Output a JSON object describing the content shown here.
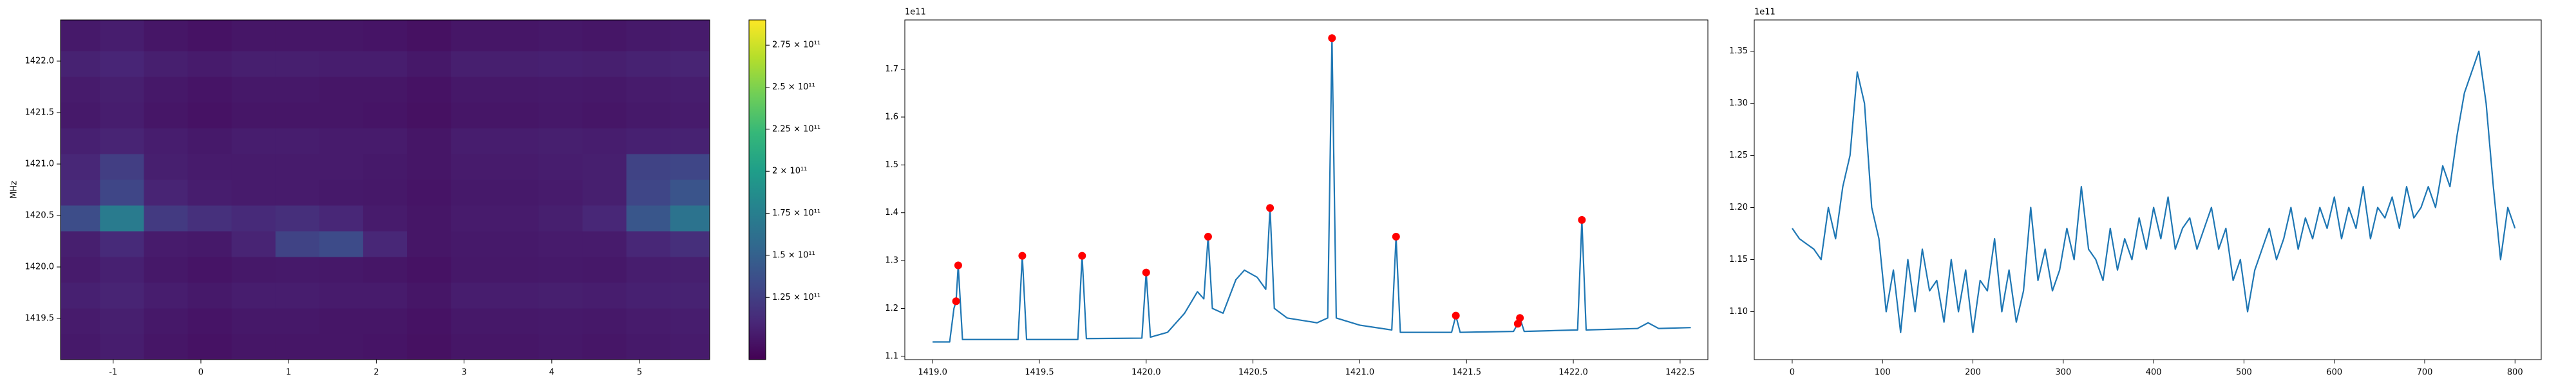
{
  "chart_data": [
    {
      "type": "heatmap",
      "x": [
        -1.4,
        -0.9,
        -0.4,
        0.1,
        0.6,
        1.1,
        1.6,
        2.1,
        2.6,
        3.1,
        3.6,
        4.1,
        4.6,
        5.1,
        5.6
      ],
      "y": [
        1419.225,
        1419.475,
        1419.725,
        1419.975,
        1420.225,
        1420.475,
        1420.725,
        1420.975,
        1421.225,
        1421.475,
        1421.725,
        1421.975,
        1422.225
      ],
      "z": [
        [
          102000000000.0,
          104000000000.0,
          100000000000.0,
          98000000000.0,
          100000000000.0,
          100000000000.0,
          100000000000.0,
          99000000000.0,
          97000000000.0,
          100000000000.0,
          100000000000.0,
          101000000000.0,
          100000000000.0,
          102000000000.0,
          103000000000.0
        ],
        [
          103000000000.0,
          105000000000.0,
          101000000000.0,
          99000000000.0,
          101000000000.0,
          101000000000.0,
          100000000000.0,
          100000000000.0,
          98000000000.0,
          101000000000.0,
          101000000000.0,
          102000000000.0,
          101000000000.0,
          103000000000.0,
          104000000000.0
        ],
        [
          106000000000.0,
          108000000000.0,
          104000000000.0,
          102000000000.0,
          104000000000.0,
          104000000000.0,
          103000000000.0,
          103000000000.0,
          100000000000.0,
          104000000000.0,
          104000000000.0,
          105000000000.0,
          104000000000.0,
          106000000000.0,
          107000000000.0
        ],
        [
          103000000000.0,
          106000000000.0,
          101000000000.0,
          99000000000.0,
          101000000000.0,
          102000000000.0,
          101000000000.0,
          100000000000.0,
          98000000000.0,
          101000000000.0,
          101000000000.0,
          102000000000.0,
          101000000000.0,
          104000000000.0,
          105000000000.0
        ],
        [
          105000000000.0,
          112000000000.0,
          103000000000.0,
          102000000000.0,
          108000000000.0,
          128000000000.0,
          134000000000.0,
          110000000000.0,
          100000000000.0,
          102000000000.0,
          102000000000.0,
          103000000000.0,
          103000000000.0,
          110000000000.0,
          115000000000.0
        ],
        [
          135000000000.0,
          172000000000.0,
          122000000000.0,
          116000000000.0,
          112000000000.0,
          115000000000.0,
          110000000000.0,
          103000000000.0,
          100000000000.0,
          103000000000.0,
          103000000000.0,
          105000000000.0,
          110000000000.0,
          142000000000.0,
          165000000000.0
        ],
        [
          112000000000.0,
          130000000000.0,
          108000000000.0,
          104000000000.0,
          103000000000.0,
          103000000000.0,
          102000000000.0,
          101000000000.0,
          99000000000.0,
          102000000000.0,
          102000000000.0,
          103000000000.0,
          105000000000.0,
          130000000000.0,
          140000000000.0
        ],
        [
          110000000000.0,
          125000000000.0,
          105000000000.0,
          103000000000.0,
          103000000000.0,
          103000000000.0,
          103000000000.0,
          102000000000.0,
          100000000000.0,
          103000000000.0,
          103000000000.0,
          104000000000.0,
          105000000000.0,
          128000000000.0,
          130000000000.0
        ],
        [
          106000000000.0,
          108000000000.0,
          104000000000.0,
          102000000000.0,
          104000000000.0,
          104000000000.0,
          103000000000.0,
          103000000000.0,
          100000000000.0,
          104000000000.0,
          104000000000.0,
          105000000000.0,
          104000000000.0,
          106000000000.0,
          107000000000.0
        ],
        [
          102000000000.0,
          104000000000.0,
          100000000000.0,
          98000000000.0,
          100000000000.0,
          100000000000.0,
          100000000000.0,
          99000000000.0,
          97000000000.0,
          100000000000.0,
          100000000000.0,
          101000000000.0,
          100000000000.0,
          102000000000.0,
          103000000000.0
        ],
        [
          103000000000.0,
          105000000000.0,
          101000000000.0,
          99000000000.0,
          101000000000.0,
          101000000000.0,
          100000000000.0,
          100000000000.0,
          98000000000.0,
          101000000000.0,
          101000000000.0,
          102000000000.0,
          101000000000.0,
          103000000000.0,
          104000000000.0
        ],
        [
          107000000000.0,
          109000000000.0,
          105000000000.0,
          103000000000.0,
          105000000000.0,
          105000000000.0,
          104000000000.0,
          104000000000.0,
          101000000000.0,
          105000000000.0,
          105000000000.0,
          106000000000.0,
          105000000000.0,
          107000000000.0,
          108000000000.0
        ],
        [
          102000000000.0,
          104000000000.0,
          100000000000.0,
          98000000000.0,
          100000000000.0,
          100000000000.0,
          100000000000.0,
          99000000000.0,
          97000000000.0,
          100000000000.0,
          100000000000.0,
          101000000000.0,
          100000000000.0,
          102000000000.0,
          103000000000.0
        ]
      ],
      "xlim": [
        -1.6,
        5.8
      ],
      "ylim": [
        1419.1,
        1422.4
      ],
      "xticks": [
        -1,
        0,
        1,
        2,
        3,
        4,
        5
      ],
      "yticks": [
        1419.5,
        {
          "value": 1420.0,
          "label": "1420.0"
        },
        1420.5,
        {
          "value": 1421.0,
          "label": "1421.0"
        },
        1421.5,
        {
          "value": 1422.0,
          "label": "1422.0"
        }
      ],
      "ylabel": "MHz",
      "colormap": "viridis",
      "clim": [
        88000000000.0,
        290000000000.0
      ],
      "colorbar_ticks": [
        {
          "value": 125000000000.0,
          "label": "1.25 × 10¹¹"
        },
        {
          "value": 150000000000.0,
          "label": "1.5 × 10¹¹"
        },
        {
          "value": 175000000000.0,
          "label": "1.75 × 10¹¹"
        },
        {
          "value": 200000000000.0,
          "label": "2 × 10¹¹"
        },
        {
          "value": 225000000000.0,
          "label": "2.25 × 10¹¹"
        },
        {
          "value": 250000000000.0,
          "label": "2.5 × 10¹¹"
        },
        {
          "value": 275000000000.0,
          "label": "2.75 × 10¹¹"
        }
      ]
    },
    {
      "type": "line",
      "series": [
        {
          "style": "line",
          "color": "#1f77b4",
          "x": [
            1419.0,
            1419.08,
            1419.1,
            1419.11,
            1419.12,
            1419.14,
            1419.4,
            1419.42,
            1419.44,
            1419.68,
            1419.7,
            1419.72,
            1419.98,
            1420.0,
            1420.02,
            1420.1,
            1420.18,
            1420.24,
            1420.27,
            1420.29,
            1420.31,
            1420.36,
            1420.42,
            1420.46,
            1420.52,
            1420.56,
            1420.58,
            1420.6,
            1420.66,
            1420.8,
            1420.85,
            1420.87,
            1420.89,
            1421.0,
            1421.15,
            1421.17,
            1421.19,
            1421.43,
            1421.45,
            1421.47,
            1421.72,
            1421.74,
            1421.75,
            1421.77,
            1422.02,
            1422.04,
            1422.06,
            1422.3,
            1422.35,
            1422.4,
            1422.55
          ],
          "values": [
            1.13,
            1.13,
            1.2,
            1.215,
            1.29,
            1.135,
            1.135,
            1.31,
            1.135,
            1.135,
            1.31,
            1.137,
            1.138,
            1.275,
            1.14,
            1.15,
            1.19,
            1.235,
            1.22,
            1.35,
            1.2,
            1.19,
            1.26,
            1.28,
            1.265,
            1.24,
            1.41,
            1.2,
            1.18,
            1.17,
            1.18,
            1.765,
            1.18,
            1.165,
            1.155,
            1.35,
            1.15,
            1.15,
            1.185,
            1.15,
            1.152,
            1.168,
            1.18,
            1.152,
            1.155,
            1.385,
            1.155,
            1.158,
            1.17,
            1.158,
            1.16
          ]
        },
        {
          "style": "points",
          "color": "#ff0000",
          "x": [
            1419.11,
            1419.12,
            1419.42,
            1419.7,
            1420.0,
            1420.29,
            1420.58,
            1420.87,
            1421.17,
            1421.45,
            1421.74,
            1421.75,
            1422.04
          ],
          "values": [
            1.215,
            1.29,
            1.31,
            1.31,
            1.275,
            1.35,
            1.41,
            1.765,
            1.35,
            1.185,
            1.168,
            1.18,
            1.385
          ]
        }
      ],
      "xlim": [
        1418.87,
        1422.63
      ],
      "ylim": [
        1.093,
        1.803
      ],
      "xticks": [
        {
          "value": 1419.0,
          "label": "1419.0"
        },
        1419.5,
        {
          "value": 1420.0,
          "label": "1420.0"
        },
        1420.5,
        {
          "value": 1421.0,
          "label": "1421.0"
        },
        1421.5,
        {
          "value": 1422.0,
          "label": "1422.0"
        },
        1422.5
      ],
      "yticks": [
        1.1,
        1.2,
        1.3,
        1.4,
        1.5,
        1.6,
        1.7
      ],
      "offset_text": "1e11"
    },
    {
      "type": "line",
      "series": [
        {
          "style": "line",
          "color": "#1f77b4",
          "x": [
            0,
            8,
            16,
            24,
            32,
            40,
            48,
            56,
            64,
            72,
            80,
            88,
            96,
            104,
            112,
            120,
            128,
            136,
            144,
            152,
            160,
            168,
            176,
            184,
            192,
            200,
            208,
            216,
            224,
            232,
            240,
            248,
            256,
            264,
            272,
            280,
            288,
            296,
            304,
            312,
            320,
            328,
            336,
            344,
            352,
            360,
            368,
            376,
            384,
            392,
            400,
            408,
            416,
            424,
            432,
            440,
            448,
            456,
            464,
            472,
            480,
            488,
            496,
            504,
            512,
            520,
            528,
            536,
            544,
            552,
            560,
            568,
            576,
            584,
            592,
            600,
            608,
            616,
            624,
            632,
            640,
            648,
            656,
            664,
            672,
            680,
            688,
            696,
            704,
            712,
            720,
            728,
            736,
            744,
            752,
            760,
            768,
            776,
            784,
            792,
            800
          ],
          "values": [
            1.18,
            1.17,
            1.165,
            1.16,
            1.15,
            1.2,
            1.17,
            1.22,
            1.25,
            1.33,
            1.3,
            1.2,
            1.17,
            1.1,
            1.14,
            1.08,
            1.15,
            1.1,
            1.16,
            1.12,
            1.13,
            1.09,
            1.15,
            1.1,
            1.14,
            1.08,
            1.13,
            1.12,
            1.17,
            1.1,
            1.14,
            1.09,
            1.12,
            1.2,
            1.13,
            1.16,
            1.12,
            1.14,
            1.18,
            1.15,
            1.22,
            1.16,
            1.15,
            1.13,
            1.18,
            1.14,
            1.17,
            1.15,
            1.19,
            1.16,
            1.2,
            1.17,
            1.21,
            1.16,
            1.18,
            1.19,
            1.16,
            1.18,
            1.2,
            1.16,
            1.18,
            1.13,
            1.15,
            1.1,
            1.14,
            1.16,
            1.18,
            1.15,
            1.17,
            1.2,
            1.16,
            1.19,
            1.17,
            1.2,
            1.18,
            1.21,
            1.17,
            1.2,
            1.18,
            1.22,
            1.17,
            1.2,
            1.19,
            1.21,
            1.18,
            1.22,
            1.19,
            1.2,
            1.22,
            1.2,
            1.24,
            1.22,
            1.27,
            1.31,
            1.33,
            1.35,
            1.3,
            1.22,
            1.15,
            1.2,
            1.18
          ]
        }
      ],
      "xlim": [
        -42,
        829
      ],
      "ylim": [
        1.054,
        1.38
      ],
      "xticks": [
        0,
        100,
        200,
        300,
        400,
        500,
        600,
        700,
        800
      ],
      "yticks": [
        {
          "value": 1.1,
          "label": "1.10"
        },
        {
          "value": 1.15,
          "label": "1.15"
        },
        {
          "value": 1.2,
          "label": "1.20"
        },
        {
          "value": 1.25,
          "label": "1.25"
        },
        {
          "value": 1.3,
          "label": "1.30"
        },
        {
          "value": 1.35,
          "label": "1.35"
        }
      ],
      "offset_text": "1e11"
    }
  ]
}
